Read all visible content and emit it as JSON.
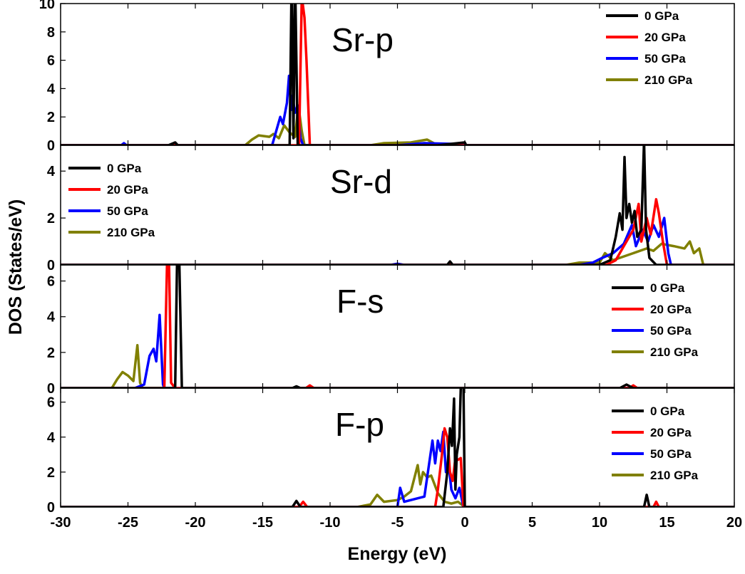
{
  "chart_data": {
    "type": "line",
    "xlabel": "Energy (eV)",
    "ylabel": "DOS (States/eV)",
    "xlim": [
      -30,
      20
    ],
    "xticks": [
      -30,
      -25,
      -20,
      -15,
      -10,
      -5,
      0,
      5,
      10,
      15,
      20
    ],
    "grid": false,
    "colors": {
      "0 GPa": "#000000",
      "20 GPa": "#ff0000",
      "50 GPa": "#0000ff",
      "210 GPa": "#808000"
    },
    "panels": [
      {
        "label": "Sr-p",
        "ylim": [
          0,
          10
        ],
        "yticks": [
          0,
          2,
          4,
          6,
          8,
          10
        ],
        "legend": "top-right",
        "series": [
          {
            "name": "0 GPa",
            "points": [
              [
                -22,
                0
              ],
              [
                -21.5,
                0.2
              ],
              [
                -21.3,
                0
              ],
              [
                -13,
                0
              ],
              [
                -12.85,
                12
              ],
              [
                -12.72,
                0.5
              ],
              [
                -12.6,
                12
              ],
              [
                -12.4,
                0
              ],
              [
                -2,
                0
              ],
              [
                -1,
                0.1
              ],
              [
                0,
                0.2
              ],
              [
                0.1,
                0
              ]
            ]
          },
          {
            "name": "20 GPa",
            "points": [
              [
                -12.3,
                0
              ],
              [
                -12.1,
                10.5
              ],
              [
                -11.9,
                9
              ],
              [
                -11.75,
                6
              ],
              [
                -11.5,
                0
              ]
            ]
          },
          {
            "name": "50 GPa",
            "points": [
              [
                -25.5,
                0
              ],
              [
                -25.3,
                0.15
              ],
              [
                -25.1,
                0
              ],
              [
                -14.3,
                0
              ],
              [
                -14,
                1
              ],
              [
                -13.7,
                2
              ],
              [
                -13.5,
                1.5
              ],
              [
                -13.2,
                3
              ],
              [
                -13.05,
                4.9
              ],
              [
                -12.9,
                2.5
              ],
              [
                -12.8,
                3.5
              ],
              [
                -12.6,
                2.3
              ],
              [
                -12.4,
                2.8
              ],
              [
                -12.2,
                0.5
              ],
              [
                -12,
                0
              ],
              [
                -5,
                0
              ],
              [
                -3,
                0.15
              ],
              [
                -1,
                0.1
              ],
              [
                0,
                0
              ]
            ]
          },
          {
            "name": "210 GPa",
            "points": [
              [
                -16.3,
                0
              ],
              [
                -15.8,
                0.4
              ],
              [
                -15.3,
                0.7
              ],
              [
                -14.5,
                0.6
              ],
              [
                -14.2,
                0.8
              ],
              [
                -13.8,
                0.5
              ],
              [
                -13.4,
                1.4
              ],
              [
                -13,
                0.9
              ],
              [
                -12.6,
                0.6
              ],
              [
                -12.35,
                2.8
              ],
              [
                -12.1,
                1
              ],
              [
                -11.9,
                0
              ],
              [
                -7,
                0
              ],
              [
                -6,
                0.15
              ],
              [
                -4,
                0.2
              ],
              [
                -2.8,
                0.4
              ],
              [
                -2.4,
                0.2
              ],
              [
                -2,
                0
              ]
            ]
          }
        ]
      },
      {
        "label": "Sr-d",
        "ylim": [
          0,
          5.1
        ],
        "yticks": [
          0,
          2,
          4
        ],
        "legend": "top-left",
        "series": [
          {
            "name": "0 GPa",
            "points": [
              [
                -1.3,
                0
              ],
              [
                -1.1,
                0.15
              ],
              [
                -0.9,
                0
              ],
              [
                10,
                0
              ],
              [
                10.8,
                0.2
              ],
              [
                11.2,
                1.2
              ],
              [
                11.5,
                2.2
              ],
              [
                11.7,
                1.5
              ],
              [
                11.85,
                4.6
              ],
              [
                12,
                2
              ],
              [
                12.2,
                2.6
              ],
              [
                12.4,
                1.8
              ],
              [
                12.6,
                2.3
              ],
              [
                12.8,
                1.2
              ],
              [
                13.1,
                1.5
              ],
              [
                13.3,
                5.3
              ],
              [
                13.45,
                1.5
              ],
              [
                13.7,
                0.3
              ],
              [
                14.2,
                0
              ]
            ]
          },
          {
            "name": "20 GPa",
            "points": [
              [
                10.5,
                0
              ],
              [
                11.2,
                0.2
              ],
              [
                11.8,
                0.8
              ],
              [
                12.5,
                1.5
              ],
              [
                12.9,
                2.6
              ],
              [
                13.1,
                1
              ],
              [
                13.5,
                2
              ],
              [
                13.8,
                1.3
              ],
              [
                14.2,
                2.8
              ],
              [
                14.4,
                2.2
              ],
              [
                14.7,
                1
              ],
              [
                15,
                0
              ]
            ]
          },
          {
            "name": "50 GPa",
            "points": [
              [
                -5.5,
                0
              ],
              [
                -5,
                0.05
              ],
              [
                -4.5,
                0
              ],
              [
                8.5,
                0
              ],
              [
                9.5,
                0.1
              ],
              [
                10.2,
                0.3
              ],
              [
                11,
                0.5
              ],
              [
                11.8,
                0.9
              ],
              [
                12.4,
                1.7
              ],
              [
                12.7,
                0.8
              ],
              [
                13.2,
                1.5
              ],
              [
                13.6,
                1
              ],
              [
                14,
                1.7
              ],
              [
                14.4,
                1.2
              ],
              [
                14.8,
                2
              ],
              [
                15.1,
                0.5
              ],
              [
                15.3,
                0
              ]
            ]
          },
          {
            "name": "210 GPa",
            "points": [
              [
                7.5,
                0
              ],
              [
                8.5,
                0.1
              ],
              [
                10,
                0.1
              ],
              [
                10.4,
                0.5
              ],
              [
                11,
                0.2
              ],
              [
                12.5,
                0.5
              ],
              [
                13.5,
                0.7
              ],
              [
                14,
                0.6
              ],
              [
                14.6,
                0.9
              ],
              [
                15.5,
                0.8
              ],
              [
                16.3,
                0.7
              ],
              [
                16.7,
                1
              ],
              [
                17,
                0.5
              ],
              [
                17.4,
                0.7
              ],
              [
                17.7,
                0
              ]
            ]
          }
        ]
      },
      {
        "label": "F-s",
        "ylim": [
          0,
          6.9
        ],
        "yticks": [
          0,
          2,
          4,
          6
        ],
        "legend": "top-right",
        "series": [
          {
            "name": "0 GPa",
            "points": [
              [
                -21.5,
                0
              ],
              [
                -21.35,
                7.5
              ],
              [
                -21.2,
                7.5
              ],
              [
                -21,
                0
              ],
              [
                -12.8,
                0
              ],
              [
                -12.5,
                0.1
              ],
              [
                -12.2,
                0
              ],
              [
                11.5,
                0
              ],
              [
                12,
                0.2
              ],
              [
                12.5,
                0
              ]
            ]
          },
          {
            "name": "20 GPa",
            "points": [
              [
                -22.3,
                0
              ],
              [
                -22.1,
                7
              ],
              [
                -21.95,
                7
              ],
              [
                -21.8,
                0.3
              ],
              [
                -21.5,
                0
              ],
              [
                -11.8,
                0
              ],
              [
                -11.5,
                0.15
              ],
              [
                -11.2,
                0
              ],
              [
                12.2,
                0
              ],
              [
                12.5,
                0.15
              ],
              [
                12.8,
                0
              ]
            ]
          },
          {
            "name": "50 GPa",
            "points": [
              [
                -24.5,
                0
              ],
              [
                -23.8,
                0.2
              ],
              [
                -23.4,
                1.8
              ],
              [
                -23.1,
                2.2
              ],
              [
                -22.9,
                1.5
              ],
              [
                -22.65,
                4.1
              ],
              [
                -22.4,
                0.2
              ],
              [
                -22.3,
                0
              ]
            ]
          },
          {
            "name": "210 GPa",
            "points": [
              [
                -26.2,
                0
              ],
              [
                -25.8,
                0.5
              ],
              [
                -25.4,
                0.9
              ],
              [
                -25,
                0.7
              ],
              [
                -24.6,
                0.4
              ],
              [
                -24.3,
                2.4
              ],
              [
                -24.1,
                0.3
              ],
              [
                -23.9,
                0
              ]
            ]
          }
        ]
      },
      {
        "label": "F-p",
        "ylim": [
          0,
          6.8
        ],
        "yticks": [
          0,
          2,
          4,
          6
        ],
        "legend": "top-right",
        "series": [
          {
            "name": "0 GPa",
            "points": [
              [
                -12.8,
                0
              ],
              [
                -12.5,
                0.35
              ],
              [
                -12.2,
                0
              ],
              [
                -1.6,
                0
              ],
              [
                -1.3,
                2
              ],
              [
                -1.1,
                4.5
              ],
              [
                -0.95,
                3.5
              ],
              [
                -0.8,
                6.2
              ],
              [
                -0.7,
                1
              ],
              [
                -0.6,
                3
              ],
              [
                -0.4,
                4
              ],
              [
                -0.3,
                6.8
              ],
              [
                -0.1,
                7
              ],
              [
                0,
                0
              ],
              [
                13.3,
                0
              ],
              [
                13.5,
                0.7
              ],
              [
                13.7,
                0
              ]
            ]
          },
          {
            "name": "20 GPa",
            "points": [
              [
                -12.3,
                0
              ],
              [
                -12,
                0.3
              ],
              [
                -11.7,
                0
              ],
              [
                -2.2,
                0
              ],
              [
                -2,
                1
              ],
              [
                -1.7,
                3
              ],
              [
                -1.5,
                4.5
              ],
              [
                -1.3,
                4
              ],
              [
                -1.1,
                2
              ],
              [
                -0.9,
                1.5
              ],
              [
                -0.7,
                2.8
              ],
              [
                -0.5,
                2.7
              ],
              [
                -0.3,
                2.8
              ],
              [
                -0.1,
                0
              ],
              [
                14,
                0
              ],
              [
                14.2,
                0.3
              ],
              [
                14.4,
                0
              ]
            ]
          },
          {
            "name": "50 GPa",
            "points": [
              [
                -5,
                0
              ],
              [
                -4.8,
                1.1
              ],
              [
                -4.5,
                0.3
              ],
              [
                -3.5,
                0.5
              ],
              [
                -3,
                0.6
              ],
              [
                -2.4,
                3.8
              ],
              [
                -2.2,
                2.5
              ],
              [
                -2,
                3.8
              ],
              [
                -1.8,
                3.2
              ],
              [
                -1.6,
                4.3
              ],
              [
                -1.4,
                2
              ],
              [
                -1.2,
                2.5
              ],
              [
                -1,
                1
              ],
              [
                -0.7,
                0.5
              ],
              [
                -0.4,
                1.1
              ],
              [
                -0.1,
                0
              ]
            ]
          },
          {
            "name": "210 GPa",
            "points": [
              [
                -8,
                0
              ],
              [
                -7,
                0.15
              ],
              [
                -6.5,
                0.7
              ],
              [
                -6,
                0.3
              ],
              [
                -5,
                0.4
              ],
              [
                -4.5,
                0.6
              ],
              [
                -4,
                0.9
              ],
              [
                -3.5,
                2.4
              ],
              [
                -3.3,
                1.3
              ],
              [
                -3.1,
                2
              ],
              [
                -2.8,
                1.7
              ],
              [
                -2.5,
                1.8
              ],
              [
                -2,
                0.8
              ],
              [
                -1.5,
                0.3
              ],
              [
                -1,
                0.2
              ],
              [
                -0.5,
                0.3
              ],
              [
                0,
                0
              ]
            ]
          }
        ]
      }
    ]
  }
}
